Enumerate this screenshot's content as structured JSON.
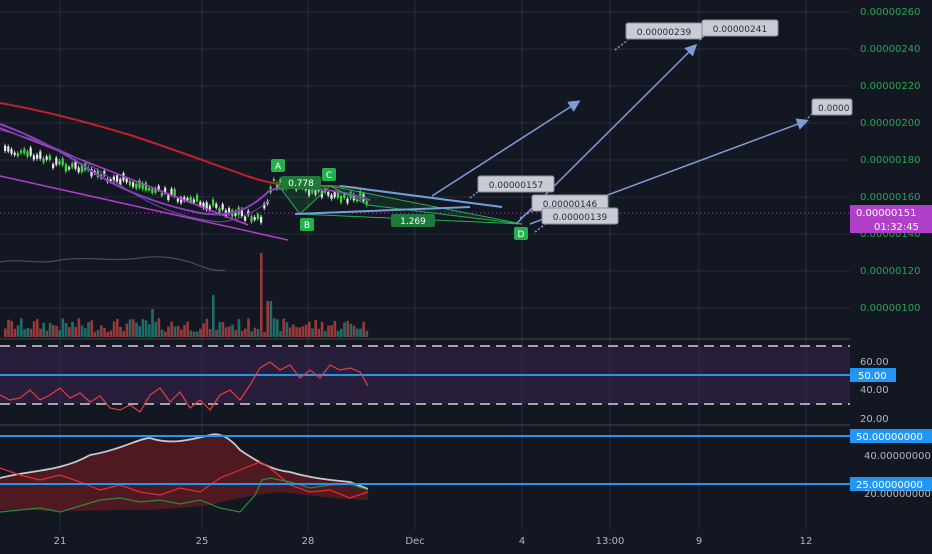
{
  "colors": {
    "background": "#131722",
    "grid": "#2a2e39",
    "up": "#26a69a",
    "down": "#ef5350",
    "bright_up": "#3cdc3c",
    "purple": "#b040c8",
    "fast_ma": "#8a3fbf",
    "slow_ma": "#c2202e",
    "blue": "#2196f3",
    "arrow": "#7e9bd6",
    "pattern_green": "#22b24c"
  },
  "price_axis": {
    "ticks": [
      "0.00000260",
      "0.00000240",
      "0.00000220",
      "0.00000200",
      "0.00000180",
      "0.00000160",
      "0.00000140",
      "0.00000120",
      "0.00000100"
    ],
    "current_price": "0.00000151",
    "countdown": "01:32:45"
  },
  "time_axis": {
    "ticks": [
      "21",
      "25",
      "28",
      "Dec",
      "4",
      "13:00",
      "9",
      "12"
    ]
  },
  "pattern": {
    "points": [
      "A",
      "B",
      "C",
      "D"
    ],
    "ratio_ab": "0.778",
    "ratio_bd": "1.269"
  },
  "price_labels": [
    "0.00000239",
    "0.00000241",
    "0.0000",
    "0.00000157",
    "0.00000146",
    "0.00000139"
  ],
  "rsi": {
    "ticks": [
      "60.00",
      "40.00",
      "20.00"
    ],
    "level": "50.00"
  },
  "dmi": {
    "ticks": [
      "40.00000000",
      "20.00000000"
    ],
    "level_high": "50.00000000",
    "level_low": "25.00000000"
  },
  "chart_data": {
    "type": "candlestick",
    "x": [
      "2018-11-20",
      "2018-11-21",
      "2018-11-22",
      "2018-11-23",
      "2018-11-24",
      "2018-11-25",
      "2018-11-26",
      "2018-11-27",
      "2018-11-28",
      "2018-11-29"
    ],
    "close_approx": [
      1.88e-06,
      1.82e-06,
      1.72e-06,
      1.65e-06,
      1.58e-06,
      1.46e-06,
      1.52e-06,
      1.63e-06,
      1.62e-06,
      1.51e-06
    ],
    "ylim": [
      8e-07,
      2.7e-06
    ],
    "pattern_points": {
      "A": 1.74e-06,
      "B": 1.49e-06,
      "C": 1.68e-06,
      "D": 1.39e-06
    },
    "indicators": {
      "rsi_level": 50,
      "rsi_band": [
        30,
        70
      ],
      "dmi_levels": [
        50,
        25
      ]
    }
  }
}
